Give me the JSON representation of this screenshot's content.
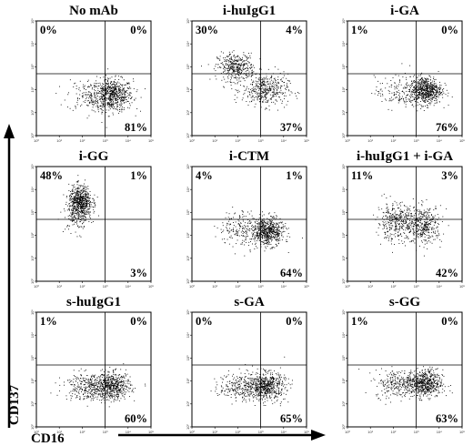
{
  "chart_data": {
    "type": "scatter",
    "xlabel": "CD16",
    "ylabel": "CD137",
    "x_scale": "log",
    "y_scale": "log",
    "xlim": [
      1,
      100000
    ],
    "ylim": [
      1,
      100000
    ],
    "x_ticks": [
      "10⁰",
      "10¹",
      "10²",
      "10³",
      "10⁴",
      "10⁵"
    ],
    "y_ticks": [
      "10⁰",
      "10¹",
      "10²",
      "10³",
      "10⁴",
      "10⁵"
    ],
    "gate": {
      "x": 1000,
      "y": 500
    },
    "quadrant_order": [
      "upper-left",
      "upper-right",
      "lower-right"
    ],
    "panels": [
      {
        "title": "No mAb",
        "quadrants": [
          "0%",
          "0%",
          "81%"
        ],
        "clusters": [
          {
            "x": 2000,
            "y": 60,
            "sx": 0.45,
            "sy": 0.35,
            "n": 650
          },
          {
            "x": 200,
            "y": 60,
            "sx": 0.5,
            "sy": 0.35,
            "n": 150
          }
        ]
      },
      {
        "title": "i-huIgG1",
        "quadrants": [
          "30%",
          "4%",
          "37%"
        ],
        "clusters": [
          {
            "x": 80,
            "y": 1000,
            "sx": 0.4,
            "sy": 0.3,
            "n": 380
          },
          {
            "x": 1500,
            "y": 100,
            "sx": 0.5,
            "sy": 0.35,
            "n": 420
          }
        ]
      },
      {
        "title": "i-GA",
        "quadrants": [
          "1%",
          "0%",
          "76%"
        ],
        "clusters": [
          {
            "x": 2500,
            "y": 100,
            "sx": 0.35,
            "sy": 0.3,
            "n": 650
          },
          {
            "x": 150,
            "y": 80,
            "sx": 0.5,
            "sy": 0.35,
            "n": 150
          }
        ]
      },
      {
        "title": "i-GG",
        "quadrants": [
          "48%",
          "1%",
          "3%"
        ],
        "clusters": [
          {
            "x": 80,
            "y": 3000,
            "sx": 0.25,
            "sy": 0.35,
            "n": 650
          },
          {
            "x": 60,
            "y": 600,
            "sx": 0.3,
            "sy": 0.35,
            "n": 100
          }
        ]
      },
      {
        "title": "i-CTM",
        "quadrants": [
          "4%",
          "1%",
          "64%"
        ],
        "clusters": [
          {
            "x": 2000,
            "y": 150,
            "sx": 0.35,
            "sy": 0.3,
            "n": 600
          },
          {
            "x": 150,
            "y": 200,
            "sx": 0.5,
            "sy": 0.4,
            "n": 200
          }
        ]
      },
      {
        "title": "i-huIgG1 + i-GA",
        "quadrants": [
          "11%",
          "3%",
          "42%"
        ],
        "clusters": [
          {
            "x": 120,
            "y": 400,
            "sx": 0.4,
            "sy": 0.4,
            "n": 350
          },
          {
            "x": 2000,
            "y": 300,
            "sx": 0.4,
            "sy": 0.4,
            "n": 400
          }
        ]
      },
      {
        "title": "s-huIgG1",
        "quadrants": [
          "1%",
          "0%",
          "60%"
        ],
        "clusters": [
          {
            "x": 2000,
            "y": 60,
            "sx": 0.4,
            "sy": 0.3,
            "n": 550
          },
          {
            "x": 150,
            "y": 60,
            "sx": 0.5,
            "sy": 0.3,
            "n": 300
          }
        ]
      },
      {
        "title": "s-GA",
        "quadrants": [
          "0%",
          "0%",
          "65%"
        ],
        "clusters": [
          {
            "x": 1800,
            "y": 60,
            "sx": 0.4,
            "sy": 0.3,
            "n": 550
          },
          {
            "x": 150,
            "y": 60,
            "sx": 0.5,
            "sy": 0.3,
            "n": 280
          }
        ]
      },
      {
        "title": "s-GG",
        "quadrants": [
          "1%",
          "0%",
          "63%"
        ],
        "clusters": [
          {
            "x": 2200,
            "y": 80,
            "sx": 0.4,
            "sy": 0.3,
            "n": 600
          },
          {
            "x": 150,
            "y": 80,
            "sx": 0.5,
            "sy": 0.3,
            "n": 250
          }
        ]
      }
    ]
  }
}
